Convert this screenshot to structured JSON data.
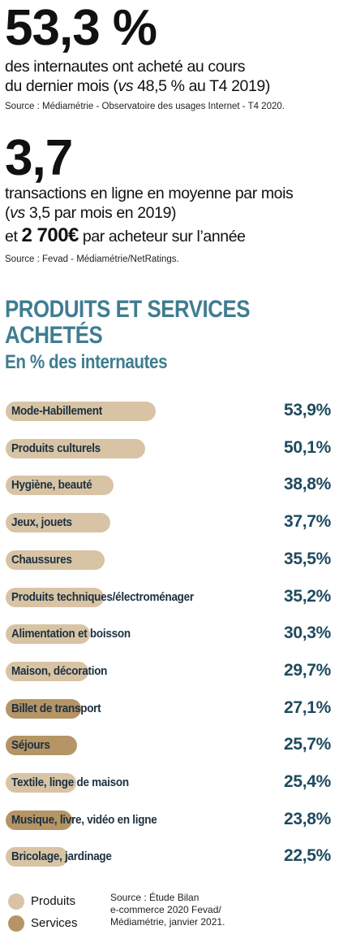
{
  "stat1": {
    "value": "53,3 %",
    "line1": "des internautes ont acheté au cours",
    "line2_prefix": "du dernier mois (",
    "line2_vs": "vs",
    "line2_suffix": " 48,5 % au T4 2019)",
    "source": "Source : Médiamétrie - Observatoire des usages Internet - T4 2020."
  },
  "stat2": {
    "value": "3,7",
    "line1": "transactions en ligne en moyenne par mois",
    "line2_prefix": "(",
    "line2_vs": "vs",
    "line2_suffix": " 3,5 par mois en 2019)",
    "line3_prefix": "et ",
    "line3_amount": "2 700€",
    "line3_suffix": " par acheteur sur l’année",
    "source": "Source : Fevad - Médiamétrie/NetRatings."
  },
  "colors": {
    "produits": "#d8c4a4",
    "services": "#b59466",
    "title": "#3f7d90",
    "value": "#1f4a5e"
  },
  "chart_data": {
    "type": "bar",
    "orientation": "horizontal",
    "title_line1": "PRODUITS ET SERVICES",
    "title_line2": "ACHETÉS",
    "subtitle": "En % des internautes",
    "categories": [
      "Mode-Habillement",
      "Produits culturels",
      "Hygiène, beauté",
      "Jeux, jouets",
      "Chaussures",
      "Produits techniques/électroménager",
      "Alimentation et boisson",
      "Maison, décoration",
      "Billet de transport",
      "Séjours",
      "Textile, linge de maison",
      "Musique, livre, vidéo en ligne",
      "Bricolage, jardinage"
    ],
    "values": [
      53.9,
      50.1,
      38.8,
      37.7,
      35.5,
      35.2,
      30.3,
      29.7,
      27.1,
      25.7,
      25.4,
      23.8,
      22.5
    ],
    "value_labels": [
      "53,9%",
      "50,1%",
      "38,8%",
      "37,7%",
      "35,5%",
      "35,2%",
      "30,3%",
      "29,7%",
      "27,1%",
      "25,7%",
      "25,4%",
      "23,8%",
      "22,5%"
    ],
    "kinds": [
      "produits",
      "produits",
      "produits",
      "produits",
      "produits",
      "produits",
      "produits",
      "produits",
      "services",
      "services",
      "produits",
      "services",
      "produits"
    ],
    "legend": [
      {
        "key": "produits",
        "label": "Produits"
      },
      {
        "key": "services",
        "label": "Services"
      }
    ],
    "legend_position": "bottom-left"
  },
  "source3": {
    "line1": "Source : Étude Bilan",
    "line2": "e-commerce 2020 Fevad/",
    "line3": "Médiamétrie, janvier 2021."
  }
}
